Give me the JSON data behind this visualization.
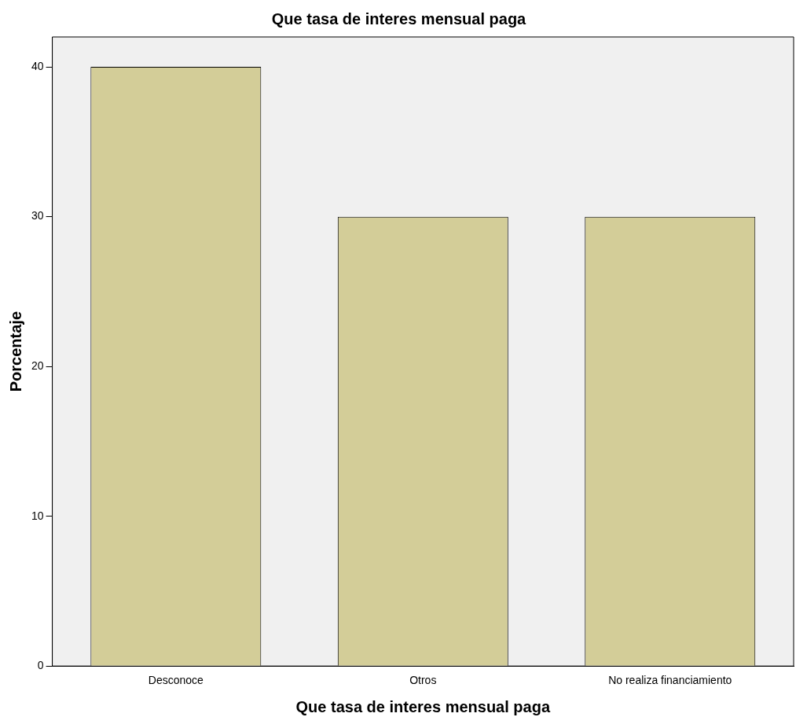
{
  "chart_data": {
    "type": "bar",
    "title": "Que tasa de interes mensual paga",
    "xlabel": "Que tasa de interes mensual paga",
    "ylabel": "Porcentaje",
    "categories": [
      "Desconoce",
      "Otros",
      "No realiza financiamiento"
    ],
    "values": [
      40,
      30,
      30
    ],
    "color": "#d3cd98",
    "ylim": [
      0,
      42
    ],
    "yticks": [
      0,
      10,
      20,
      30,
      40
    ],
    "grid": false,
    "legend": false
  }
}
